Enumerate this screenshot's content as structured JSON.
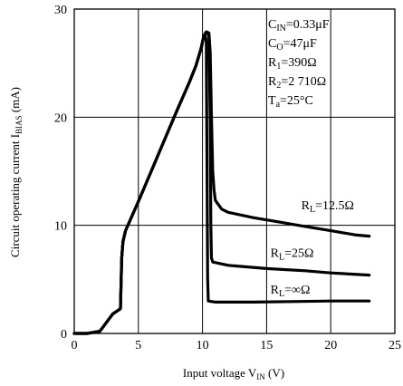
{
  "chart_data": {
    "type": "line",
    "xlabel": {
      "main": "Input voltage V",
      "sub": "IN",
      "unit": " (V)"
    },
    "ylabel": {
      "main": "Circuit operating current I",
      "sub": "BIAS",
      "unit": " (mA)"
    },
    "xlim": [
      0,
      25
    ],
    "ylim": [
      0,
      30
    ],
    "xticks": [
      "0",
      "5",
      "10",
      "15",
      "20",
      "25"
    ],
    "yticks": [
      "0",
      "10",
      "20",
      "30"
    ],
    "grid": true,
    "conditions": [
      {
        "main": "C",
        "sub": "IN",
        "rest": "=0.33μF"
      },
      {
        "main": "C",
        "sub": "O",
        "rest": "=47μF"
      },
      {
        "main": "R",
        "sub": "1",
        "rest": "=390Ω"
      },
      {
        "main": "R",
        "sub": "2",
        "rest": "=2 710Ω"
      },
      {
        "main": "T",
        "sub": "a",
        "rest": "=25°C"
      }
    ],
    "series": [
      {
        "name": {
          "main": "R",
          "sub": "L",
          "rest": "=12.5Ω"
        },
        "label_at": [
          17.7,
          11.5
        ],
        "points": [
          [
            0,
            0
          ],
          [
            1,
            0
          ],
          [
            2,
            0.2
          ],
          [
            2.5,
            1
          ],
          [
            3,
            1.8
          ],
          [
            3.5,
            2.2
          ],
          [
            3.6,
            2.3
          ],
          [
            3.7,
            7
          ],
          [
            3.8,
            8.5
          ],
          [
            4,
            9.5
          ],
          [
            5,
            12.2
          ],
          [
            6,
            15
          ],
          [
            7,
            17.8
          ],
          [
            8,
            20.6
          ],
          [
            9,
            23.3
          ],
          [
            9.5,
            24.8
          ],
          [
            9.9,
            26.4
          ],
          [
            10.1,
            27.5
          ],
          [
            10.3,
            27.9
          ],
          [
            10.5,
            27.8
          ],
          [
            10.6,
            26
          ],
          [
            10.7,
            20
          ],
          [
            10.8,
            15
          ],
          [
            10.9,
            13.3
          ],
          [
            11,
            12.3
          ],
          [
            11.5,
            11.5
          ],
          [
            12,
            11.2
          ],
          [
            14,
            10.7
          ],
          [
            16,
            10.3
          ],
          [
            18,
            9.9
          ],
          [
            20,
            9.5
          ],
          [
            22,
            9.1
          ],
          [
            23,
            9
          ]
        ]
      },
      {
        "name": {
          "main": "R",
          "sub": "L",
          "rest": "=25Ω"
        },
        "label_at": [
          15.3,
          7.1
        ],
        "points": [
          [
            0,
            0
          ],
          [
            1,
            0
          ],
          [
            2,
            0.2
          ],
          [
            2.5,
            1
          ],
          [
            3,
            1.8
          ],
          [
            3.5,
            2.2
          ],
          [
            3.6,
            2.3
          ],
          [
            3.7,
            7
          ],
          [
            3.8,
            8.5
          ],
          [
            4,
            9.5
          ],
          [
            5,
            12.2
          ],
          [
            6,
            15
          ],
          [
            7,
            17.8
          ],
          [
            8,
            20.6
          ],
          [
            9,
            23.3
          ],
          [
            9.5,
            24.8
          ],
          [
            9.9,
            26.4
          ],
          [
            10.1,
            27.5
          ],
          [
            10.3,
            27.9
          ],
          [
            10.5,
            27.6
          ],
          [
            10.6,
            20
          ],
          [
            10.65,
            10
          ],
          [
            10.7,
            7
          ],
          [
            10.8,
            6.6
          ],
          [
            12,
            6.3
          ],
          [
            15,
            6
          ],
          [
            18,
            5.8
          ],
          [
            20,
            5.6
          ],
          [
            23,
            5.4
          ]
        ]
      },
      {
        "name": {
          "main": "R",
          "sub": "L",
          "rest": "=∞Ω"
        },
        "label_at": [
          15.3,
          3.7
        ],
        "points": [
          [
            0,
            0
          ],
          [
            1,
            0
          ],
          [
            2,
            0.2
          ],
          [
            2.5,
            1
          ],
          [
            3,
            1.8
          ],
          [
            3.5,
            2.2
          ],
          [
            3.6,
            2.3
          ],
          [
            3.7,
            7
          ],
          [
            3.8,
            8.5
          ],
          [
            4,
            9.5
          ],
          [
            5,
            12.2
          ],
          [
            6,
            15
          ],
          [
            7,
            17.8
          ],
          [
            8,
            20.6
          ],
          [
            9,
            23.3
          ],
          [
            9.5,
            24.8
          ],
          [
            9.9,
            26.4
          ],
          [
            10.1,
            27.5
          ],
          [
            10.2,
            27.7
          ],
          [
            10.3,
            27
          ],
          [
            10.35,
            15
          ],
          [
            10.4,
            5
          ],
          [
            10.45,
            3
          ],
          [
            11,
            2.9
          ],
          [
            14,
            2.9
          ],
          [
            17,
            2.95
          ],
          [
            20,
            3
          ],
          [
            23,
            3
          ]
        ]
      }
    ]
  }
}
